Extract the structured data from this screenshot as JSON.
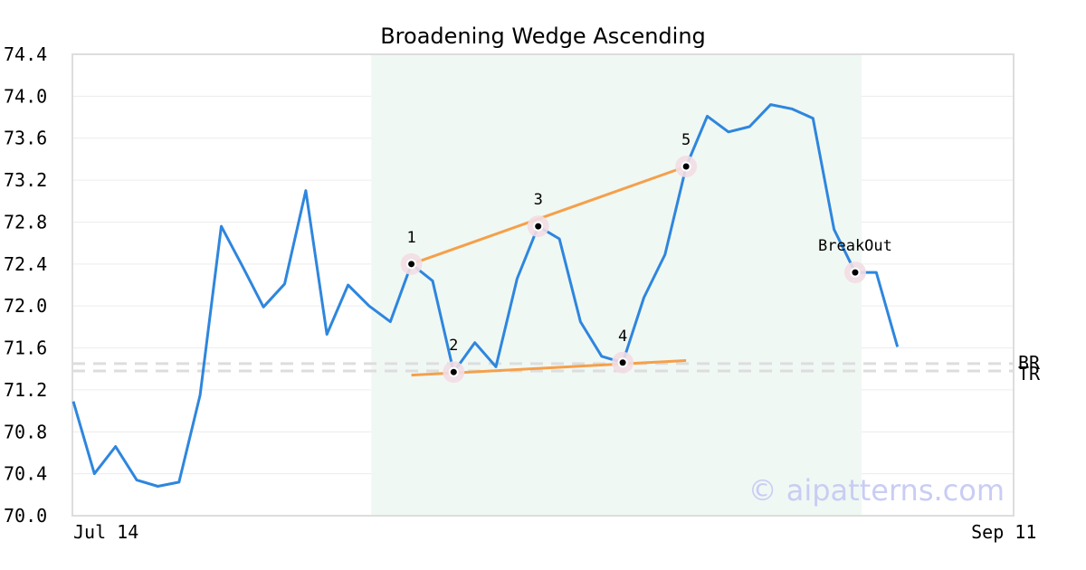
{
  "chart_data": {
    "type": "line",
    "title": "Broadening Wedge Ascending",
    "xlabel": "",
    "ylabel": "",
    "ylim": [
      70.0,
      74.4
    ],
    "y_ticks": [
      "70.0",
      "70.4",
      "70.8",
      "71.2",
      "71.6",
      "72.0",
      "72.4",
      "72.8",
      "73.2",
      "73.6",
      "74.0",
      "74.4"
    ],
    "x_ticks": [
      {
        "label": "Jul 14",
        "index": 0
      },
      {
        "label": "Sep 11",
        "index": 44
      }
    ],
    "grid": true,
    "series": [
      {
        "color": "#2e86de",
        "values": [
          71.09,
          70.4,
          70.66,
          70.34,
          70.28,
          70.32,
          71.15,
          72.76,
          72.38,
          71.99,
          72.21,
          73.1,
          71.73,
          72.2,
          72.0,
          71.85,
          72.4,
          72.24,
          71.37,
          71.65,
          71.42,
          72.26,
          72.76,
          72.64,
          71.85,
          71.52,
          71.46,
          72.08,
          72.49,
          73.33,
          73.81,
          73.66,
          73.71,
          73.92,
          73.88,
          73.79,
          72.73,
          72.32,
          72.32,
          71.61
        ]
      }
    ],
    "pattern_region": {
      "start_index": 14.1,
      "end_index": 37.3,
      "color": "#f0f8f4"
    },
    "trendlines": [
      {
        "name": "upper",
        "color": "#f5a04a",
        "points": [
          [
            16,
            72.4
          ],
          [
            29,
            73.33
          ]
        ]
      },
      {
        "name": "lower",
        "color": "#f5a04a",
        "points": [
          [
            16,
            71.34
          ],
          [
            29,
            71.48
          ]
        ]
      }
    ],
    "pivots": [
      {
        "label": "1",
        "index": 16,
        "value": 72.4,
        "label_pos": "above"
      },
      {
        "label": "2",
        "index": 18,
        "value": 71.37,
        "label_pos": "above"
      },
      {
        "label": "3",
        "index": 22,
        "value": 72.76,
        "label_pos": "above"
      },
      {
        "label": "4",
        "index": 26,
        "value": 71.46,
        "label_pos": "above"
      },
      {
        "label": "5",
        "index": 29,
        "value": 73.33,
        "label_pos": "above"
      },
      {
        "label": "BreakOut",
        "index": 37,
        "value": 72.32,
        "label_pos": "above"
      }
    ],
    "reference_lines": [
      {
        "label": "BR",
        "value": 71.45,
        "color": "#dddddd"
      },
      {
        "label": "TR",
        "value": 71.38,
        "color": "#dddddd"
      }
    ],
    "watermark": "© aipatterns.com"
  }
}
